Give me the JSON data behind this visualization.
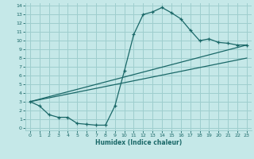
{
  "xlabel": "Humidex (Indice chaleur)",
  "xlim": [
    -0.5,
    23.5
  ],
  "ylim": [
    -0.3,
    14.3
  ],
  "xticks": [
    0,
    1,
    2,
    3,
    4,
    5,
    6,
    7,
    8,
    9,
    10,
    11,
    12,
    13,
    14,
    15,
    16,
    17,
    18,
    19,
    20,
    21,
    22,
    23
  ],
  "yticks": [
    0,
    1,
    2,
    3,
    4,
    5,
    6,
    7,
    8,
    9,
    10,
    11,
    12,
    13,
    14
  ],
  "bg_color": "#c5e8e8",
  "grid_color": "#9ecece",
  "line_color": "#1a6868",
  "line1_x": [
    0,
    1,
    2,
    3,
    4,
    5,
    6,
    7,
    8,
    9,
    10,
    11,
    12,
    13,
    14,
    15,
    16,
    17,
    18,
    19,
    20,
    21,
    22,
    23
  ],
  "line1_y": [
    3.0,
    2.5,
    1.5,
    1.2,
    1.2,
    0.5,
    0.4,
    0.3,
    0.3,
    2.5,
    6.5,
    10.7,
    13.0,
    13.3,
    13.8,
    13.2,
    12.5,
    11.2,
    10.0,
    10.2,
    9.8,
    9.7,
    9.5,
    9.5
  ],
  "line2_x": [
    0,
    23
  ],
  "line2_y": [
    3.0,
    9.5
  ],
  "line3_x": [
    0,
    23
  ],
  "line3_y": [
    3.0,
    8.0
  ]
}
